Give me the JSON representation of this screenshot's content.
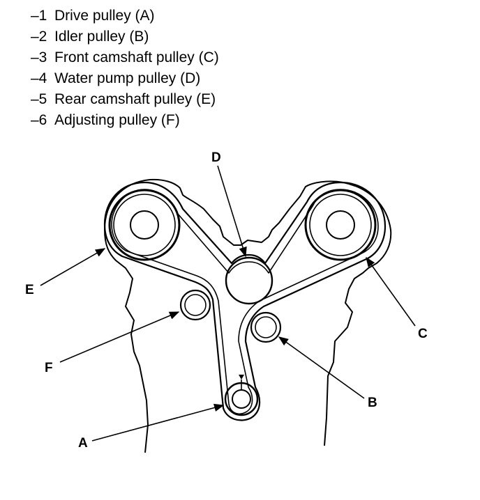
{
  "legend": [
    {
      "number": "–1",
      "label": "Drive pulley (A)"
    },
    {
      "number": "–2",
      "label": "Idler pulley (B)"
    },
    {
      "number": "–3",
      "label": "Front camshaft pulley (C)"
    },
    {
      "number": "–4",
      "label": "Water pump pulley (D)"
    },
    {
      "number": "–5",
      "label": "Rear camshaft pulley (E)"
    },
    {
      "number": "–6",
      "label": "Adjusting pulley (F)"
    }
  ],
  "callouts": {
    "a": "A",
    "b": "B",
    "c": "C",
    "d": "D",
    "e": "E",
    "f": "F"
  },
  "colors": {
    "ink": "#000000",
    "background": "#ffffff"
  }
}
